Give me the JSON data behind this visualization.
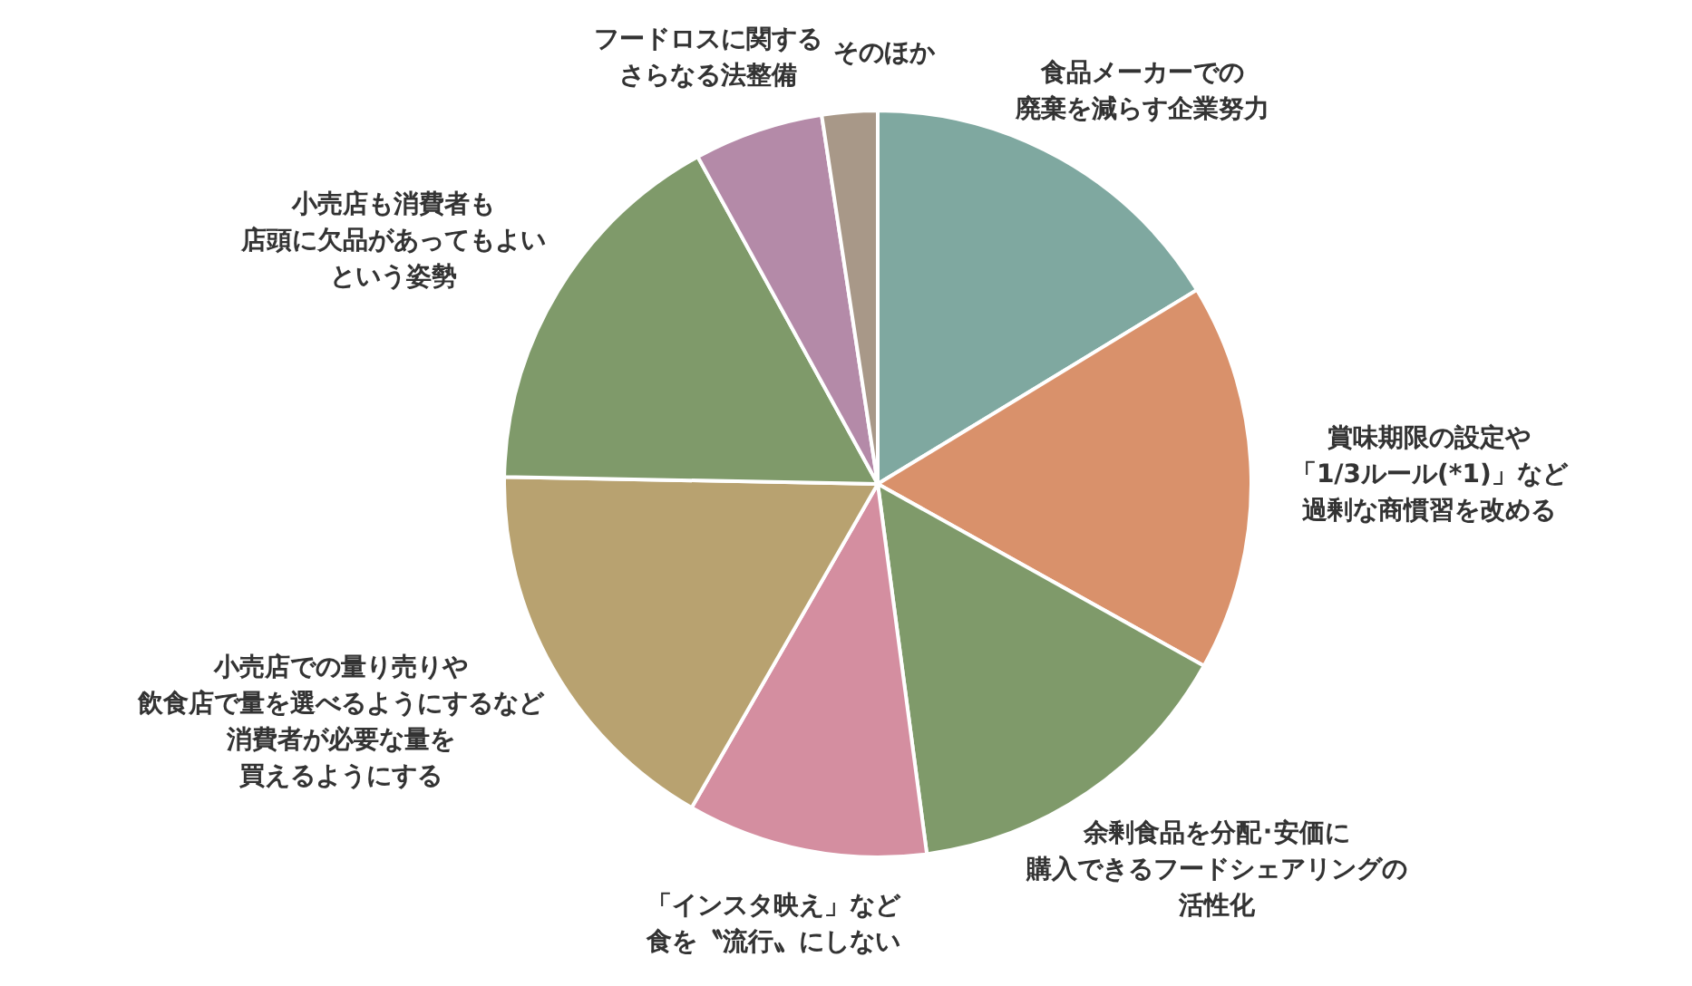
{
  "chart_data": {
    "type": "pie",
    "categories": [
      "食品メーカーでの廃棄を減らす企業努力",
      "賞味期限の設定や「1/3ルール(*1)」など過剰な商慣習を改める",
      "余剰食品を分配･安価に購入できるフードシェアリングの活性化",
      "「インスタ映え」など食を〝流行〟にしない",
      "小売店での量り売りや飲食店で量を選べるようにするなど消費者が必要な量を買えるようにする",
      "小売店も消費者も店頭に欠品があってもよいという姿勢",
      "フードロスに関するさらなる法整備",
      "そのほか"
    ],
    "values": [
      16.3,
      16.8,
      14.8,
      10.4,
      17.0,
      16.7,
      5.6,
      2.4
    ],
    "colors": [
      "#7fa8a0",
      "#d9916b",
      "#7f9a6a",
      "#d48ea0",
      "#b8a270",
      "#7f9a6a",
      "#b48aa8",
      "#a89888"
    ]
  }
}
